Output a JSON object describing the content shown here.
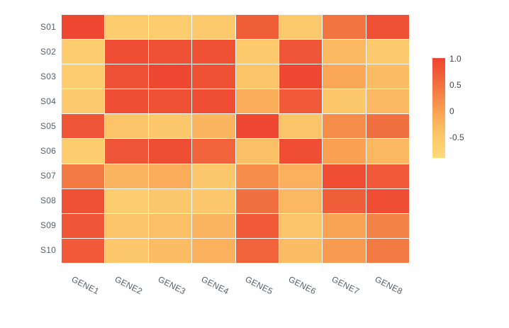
{
  "chart_data": {
    "type": "heatmap",
    "title": "",
    "xlabel": "",
    "ylabel": "",
    "x": [
      "GENE1",
      "GENE2",
      "GENE3",
      "GENE4",
      "GENE5",
      "GENE6",
      "GENE7",
      "GENE8"
    ],
    "y": [
      "S01",
      "S02",
      "S03",
      "S04",
      "S05",
      "S06",
      "S07",
      "S08",
      "S09",
      "S10"
    ],
    "z": [
      [
        0.95,
        -0.6,
        -0.6,
        -0.55,
        0.7,
        -0.55,
        0.45,
        0.85
      ],
      [
        -0.6,
        0.9,
        0.85,
        0.85,
        -0.55,
        0.8,
        -0.3,
        -0.55
      ],
      [
        -0.6,
        0.85,
        0.95,
        0.85,
        -0.45,
        0.95,
        -0.1,
        -0.35
      ],
      [
        -0.55,
        0.9,
        0.85,
        0.9,
        -0.15,
        0.75,
        -0.5,
        -0.3
      ],
      [
        0.8,
        -0.45,
        -0.5,
        -0.25,
        0.95,
        -0.45,
        0.2,
        0.5
      ],
      [
        -0.6,
        0.8,
        0.9,
        0.65,
        -0.4,
        0.9,
        0.0,
        -0.3
      ],
      [
        0.4,
        -0.25,
        -0.15,
        -0.5,
        0.2,
        -0.2,
        0.9,
        0.75
      ],
      [
        0.85,
        -0.6,
        -0.5,
        -0.5,
        0.5,
        -0.3,
        0.7,
        0.9
      ],
      [
        0.8,
        -0.45,
        -0.4,
        -0.25,
        0.75,
        -0.45,
        -0.05,
        0.3
      ],
      [
        0.75,
        -0.5,
        -0.35,
        -0.2,
        0.65,
        -0.35,
        0.05,
        0.4
      ]
    ],
    "zmin": -0.9,
    "zmax": 1.0,
    "grid": false,
    "x_tick_angle_deg": 27,
    "colorscale": [
      {
        "z": 1.0,
        "color": "#ee4431"
      },
      {
        "z": 0.5,
        "color": "#f1703f"
      },
      {
        "z": 0.0,
        "color": "#f9a053"
      },
      {
        "z": -0.5,
        "color": "#fcc86b"
      },
      {
        "z": -0.9,
        "color": "#fdda7b"
      }
    ],
    "colorbar": {
      "position": "right",
      "tick_labels": [
        "1.0",
        "0.5",
        "0",
        "-0.5"
      ],
      "tick_values": [
        1.0,
        0.5,
        0.0,
        -0.5
      ]
    }
  },
  "colors": {
    "background": "#ffffff",
    "axis_tick_text": "#555e67",
    "colorbar_tick_text": "#40464d",
    "cell_gap": "#ffffff"
  }
}
